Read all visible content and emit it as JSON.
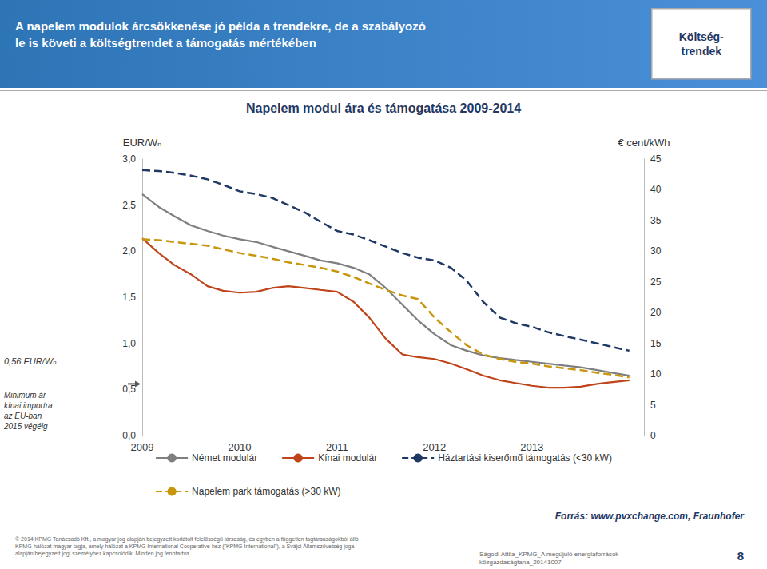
{
  "chart_data": {
    "type": "line",
    "title": "Napelem modul ára és támogatása 2009-2014",
    "subtitle": "A napelem modulok árcsökkenése jó példa a trendekre, de a szabályozó\nle is követi a költségtrendet a támogatás mértékében",
    "ylabel": "EUR/Wₙ",
    "y2label": "€ cent/kWh",
    "x": [
      2009.0,
      2009.17,
      2009.33,
      2009.5,
      2009.67,
      2009.83,
      2010.0,
      2010.17,
      2010.33,
      2010.5,
      2010.67,
      2010.83,
      2011.0,
      2011.17,
      2011.33,
      2011.5,
      2011.67,
      2011.83,
      2012.0,
      2012.17,
      2012.33,
      2012.5,
      2012.67,
      2012.83,
      2013.0,
      2013.17,
      2013.33,
      2013.5,
      2013.67,
      2013.83,
      2014.0
    ],
    "series": [
      {
        "name": "Német modulár",
        "color": "#7F7F7F",
        "line_style": "solid",
        "values": [
          2.62,
          2.48,
          2.38,
          2.28,
          2.22,
          2.17,
          2.13,
          2.1,
          2.05,
          2.0,
          1.95,
          1.9,
          1.87,
          1.82,
          1.75,
          1.6,
          1.42,
          1.25,
          1.1,
          0.98,
          0.92,
          0.87,
          0.84,
          0.82,
          0.8,
          0.78,
          0.76,
          0.74,
          0.71,
          0.68,
          0.65
        ]
      },
      {
        "name": "Kínai modulár",
        "color": "#C0441A",
        "line_style": "solid",
        "values": [
          2.14,
          1.98,
          1.85,
          1.75,
          1.62,
          1.57,
          1.55,
          1.56,
          1.6,
          1.62,
          1.6,
          1.58,
          1.56,
          1.45,
          1.28,
          1.05,
          0.88,
          0.85,
          0.83,
          0.78,
          0.72,
          0.65,
          0.6,
          0.57,
          0.54,
          0.52,
          0.52,
          0.53,
          0.56,
          0.58,
          0.6
        ]
      },
      {
        "name": "Háztartási kiserőmű támogatás (<30 kW)",
        "color": "#1F3864",
        "line_style": "dashed",
        "values": [
          2.88,
          2.87,
          2.85,
          2.82,
          2.78,
          2.72,
          2.65,
          2.62,
          2.58,
          2.5,
          2.42,
          2.32,
          2.22,
          2.18,
          2.12,
          2.05,
          1.98,
          1.93,
          1.9,
          1.82,
          1.68,
          1.45,
          1.28,
          1.22,
          1.18,
          1.12,
          1.08,
          1.04,
          1.0,
          0.96,
          0.92
        ]
      },
      {
        "name": "Napelem park támogatás (>30 kW)",
        "color": "#C8960C",
        "line_style": "dashed",
        "values": [
          2.13,
          2.12,
          2.1,
          2.08,
          2.06,
          2.02,
          1.98,
          1.95,
          1.92,
          1.88,
          1.85,
          1.82,
          1.78,
          1.72,
          1.65,
          1.58,
          1.52,
          1.48,
          1.28,
          1.12,
          0.98,
          0.88,
          0.83,
          0.8,
          0.78,
          0.75,
          0.73,
          0.71,
          0.68,
          0.66,
          0.63
        ]
      }
    ],
    "xlim": [
      2009,
      2014.15
    ],
    "xticks": [
      2009,
      2010,
      2011,
      2012,
      2013
    ],
    "ylim": [
      0.0,
      3.0
    ],
    "yticks": [
      {
        "value": 0.0,
        "label": "0,0"
      },
      {
        "value": 0.5,
        "label": "0,5"
      },
      {
        "value": 1.0,
        "label": "1,0"
      },
      {
        "value": 1.5,
        "label": "1,5"
      },
      {
        "value": 2.0,
        "label": "2,0"
      },
      {
        "value": 2.5,
        "label": "2,5"
      },
      {
        "value": 3.0,
        "label": "3,0"
      }
    ],
    "y2lim": [
      0,
      45
    ],
    "y2ticks": [
      0,
      5,
      10,
      15,
      20,
      25,
      30,
      35,
      40,
      45
    ],
    "hline": {
      "y": 0.56,
      "label": "0,56 EUR/Wₙ",
      "note": "Minimum ár\nkínai importra\naz EU-ban\n2015 végéig"
    },
    "annotations": [
      {
        "text": "Költség-\ntrendek"
      },
      {
        "text": "Forrás: www.pvxchange.com, Fraunhofer"
      },
      {
        "text": "© 2014 KPMG Tanácsadó Kft., a magyar jog alapján bejegyzett korlátolt felelősségű társaság, és egyben a független tagtársaságokból álló\nKPMG-hálózat magyar tagja, amely hálózat a KPMG International Cooperative-hez (\"KPMG International\"), a Svájci Államszövetség joga\nalapján bejegyzett jogi személyhez kapcsolódik. Minden jog fenntartva."
      },
      {
        "text": "Ságodi Attila_KPMG_A megújuló energiaforrások\nközgazdaságtana_20141007"
      },
      {
        "text": "8"
      }
    ],
    "grid": false,
    "legend": "bottom"
  }
}
